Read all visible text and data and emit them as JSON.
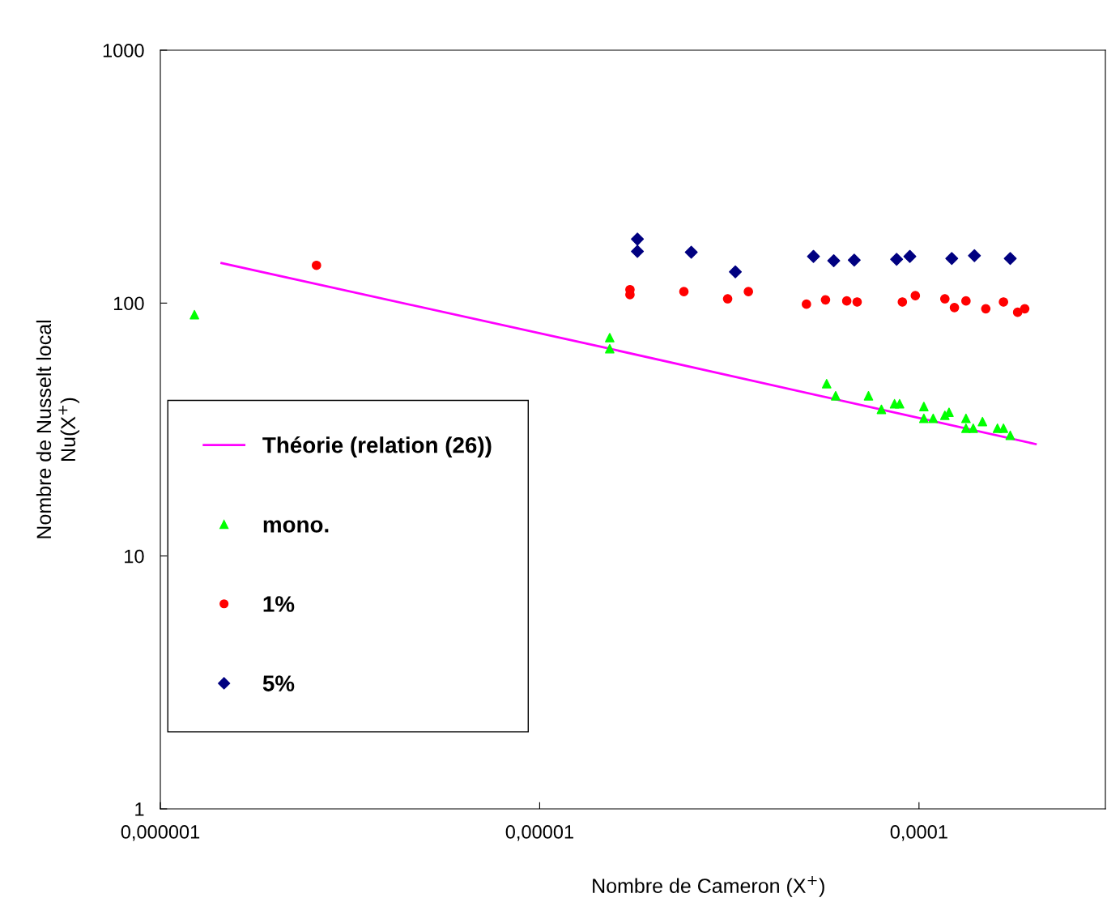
{
  "chart_data": {
    "type": "scatter",
    "xlabel": "Nombre de Cameron (X$^{+}$)",
    "ylabel": "Nombre de Nusselt local\nNu(X$^{+}$)",
    "log": "xy",
    "xlim": [
      1e-06,
      0.00031
    ],
    "ylim": [
      1,
      1000
    ],
    "xticks": [
      {
        "value": 1e-06,
        "label": "0,000001"
      },
      {
        "value": 1e-05,
        "label": "0,00001"
      },
      {
        "value": 0.0001,
        "label": "0,0001"
      }
    ],
    "yticks": [
      1,
      10,
      100,
      1000
    ],
    "grid": false,
    "legend": "left",
    "series": [
      {
        "name": "Théorie (relation (26))",
        "type": "line",
        "color": "#ff00ff",
        "marker": "none",
        "line_style": "solid",
        "x": [
          1.45e-06,
          1.53e-05,
          0.000203
        ],
        "values": [
          144,
          66,
          27.7
        ]
      },
      {
        "name": "mono.",
        "color": "#00ff00",
        "marker": "triangle",
        "x": [
          1.23e-06,
          1.53e-05,
          1.53e-05,
          5.71e-05,
          6.03e-05,
          7.36e-05,
          7.96e-05,
          8.62e-05,
          8.89e-05,
          0.000103,
          0.000103,
          0.000109,
          0.000117,
          0.00012,
          0.000133,
          0.000133,
          0.000139,
          0.000147,
          0.000161,
          0.000167,
          0.000174
        ],
        "values": [
          90,
          73,
          66,
          48,
          43,
          43,
          38,
          40,
          40,
          39,
          35,
          35,
          36,
          37,
          35,
          32,
          32,
          34,
          32,
          32,
          30
        ]
      },
      {
        "name": "1%",
        "color": "#ff0000",
        "marker": "circle",
        "x": [
          2.58e-06,
          1.73e-05,
          1.73e-05,
          2.4e-05,
          3.13e-05,
          3.55e-05,
          5.05e-05,
          5.67e-05,
          6.45e-05,
          6.87e-05,
          9.04e-05,
          9.78e-05,
          0.000117,
          0.000124,
          0.000133,
          0.00015,
          0.000167,
          0.000182,
          0.00019
        ],
        "values": [
          141,
          113,
          108,
          111,
          104,
          111,
          99,
          103,
          102,
          101,
          101,
          107,
          104,
          96,
          102,
          95,
          101,
          92,
          95
        ]
      },
      {
        "name": "5%",
        "color": "#000080",
        "marker": "diamond",
        "x": [
          1.81e-05,
          1.81e-05,
          2.51e-05,
          3.28e-05,
          5.27e-05,
          5.96e-05,
          6.75e-05,
          8.73e-05,
          9.46e-05,
          0.000122,
          0.00014,
          0.000174
        ],
        "values": [
          179,
          160,
          159,
          133,
          153,
          147,
          148,
          149,
          153,
          150,
          154,
          150
        ]
      }
    ]
  }
}
